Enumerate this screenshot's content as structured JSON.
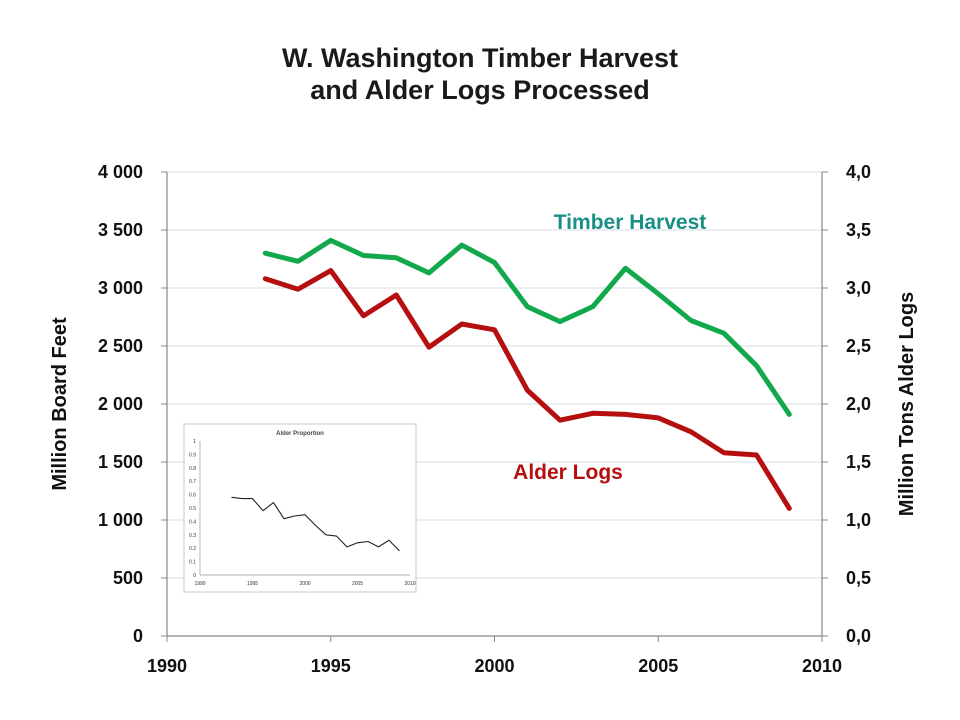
{
  "chart_data": {
    "type": "line",
    "title_line1": "W. Washington Timber Harvest",
    "title_line2": "and Alder Logs Processed",
    "ylabel": "Million Board Feet",
    "y2label": "Million Tons Alder Logs",
    "xlim": [
      1990,
      2010
    ],
    "ylim": [
      0,
      4000
    ],
    "y2lim": [
      0,
      4.0
    ],
    "x_ticks": [
      "1990",
      "1995",
      "2000",
      "2005",
      "2010"
    ],
    "y_ticks": [
      "0",
      "500",
      "1 000",
      "1 500",
      "2 000",
      "2 500",
      "3 000",
      "3 500",
      "4 000"
    ],
    "y2_ticks": [
      "0,0",
      "0,5",
      "1,0",
      "1,5",
      "2,0",
      "2,5",
      "3,0",
      "3,5",
      "4,0"
    ],
    "grid": true,
    "series": [
      {
        "name": "Timber Harvest",
        "axis": "left",
        "color": "#12a84c",
        "x": [
          1993,
          1994,
          1995,
          1996,
          1997,
          1998,
          1999,
          2000,
          2001,
          2002,
          2003,
          2004,
          2005,
          2006,
          2007,
          2008,
          2009
        ],
        "values": [
          3300,
          3230,
          3410,
          3280,
          3260,
          3130,
          3370,
          3220,
          2840,
          2710,
          2840,
          3170,
          2950,
          2720,
          2610,
          2330,
          1910
        ]
      },
      {
        "name": "Alder Logs",
        "axis": "right",
        "color": "#b50f0f",
        "x": [
          1993,
          1994,
          1995,
          1996,
          1997,
          1998,
          1999,
          2000,
          2001,
          2002,
          2003,
          2004,
          2005,
          2006,
          2007,
          2008,
          2009
        ],
        "values": [
          3.08,
          2.99,
          3.15,
          2.76,
          2.94,
          2.49,
          2.69,
          2.64,
          2.12,
          1.86,
          1.92,
          1.91,
          1.88,
          1.76,
          1.58,
          1.56,
          1.1
        ]
      }
    ],
    "inset": {
      "title": "Alder Proportion",
      "xlim": [
        1990,
        2010
      ],
      "ylim": [
        0,
        1
      ],
      "x_ticks": [
        "1990",
        "1995",
        "2000",
        "2005",
        "2010"
      ],
      "y_ticks": [
        "0",
        "0.1",
        "0.2",
        "0.3",
        "0.4",
        "0.5",
        "0.6",
        "0.7",
        "0.8",
        "0.9",
        "1"
      ],
      "color": "#222222",
      "x": [
        1993,
        1994,
        1995,
        1996,
        1997,
        1998,
        1999,
        2000,
        2001,
        2002,
        2003,
        2004,
        2005,
        2006,
        2007,
        2008,
        2009
      ],
      "values": [
        0.58,
        0.57,
        0.57,
        0.48,
        0.54,
        0.42,
        0.44,
        0.45,
        0.37,
        0.3,
        0.29,
        0.21,
        0.24,
        0.25,
        0.21,
        0.26,
        0.18
      ]
    }
  }
}
